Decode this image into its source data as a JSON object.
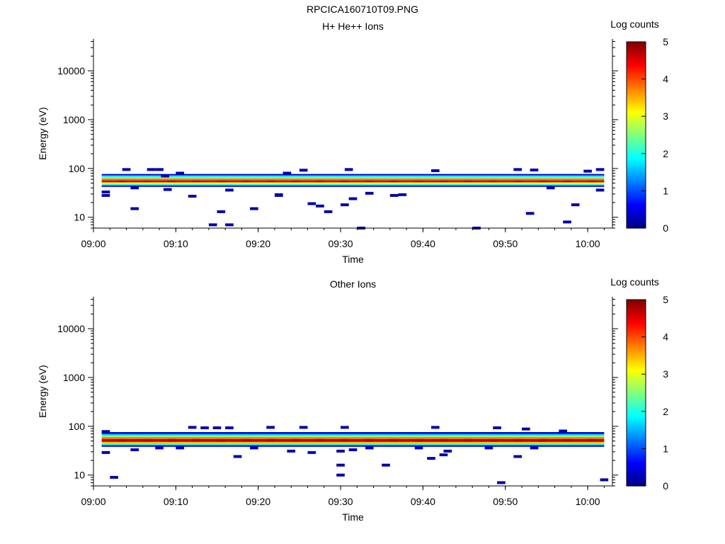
{
  "title": "RPCICA160710T09.PNG",
  "chart_data": [
    {
      "type": "heatmap",
      "title": "H+ He++ Ions",
      "xlabel": "Time",
      "ylabel": "Energy (eV)",
      "x_ticks": [
        "09:00",
        "09:10",
        "09:20",
        "09:30",
        "09:40",
        "09:50",
        "10:00"
      ],
      "x_range": [
        "09:00",
        "10:03"
      ],
      "y_scale": "log",
      "y_ticks": [
        10,
        100,
        1000,
        10000
      ],
      "y_tick_labels": [
        "10",
        "100",
        "1000",
        "10000"
      ],
      "ylim": [
        6,
        45000
      ],
      "colorbar": {
        "label": "Log counts",
        "range": [
          0,
          5
        ],
        "ticks": [
          "0",
          "1",
          "2",
          "3",
          "4",
          "5"
        ]
      },
      "band": {
        "time_start": "09:01",
        "time_end": "10:02",
        "levels": [
          {
            "energy": [
              42,
              45
            ],
            "value": 0.6
          },
          {
            "energy": [
              45,
              48
            ],
            "value": 2.0
          },
          {
            "energy": [
              48,
              52
            ],
            "value": 3.2
          },
          {
            "energy": [
              52,
              57
            ],
            "value": 4.6
          },
          {
            "energy": [
              57,
              62
            ],
            "value": 3.8
          },
          {
            "energy": [
              62,
              67
            ],
            "value": 2.6
          },
          {
            "energy": [
              67,
              72
            ],
            "value": 1.8
          },
          {
            "energy": [
              72,
              77
            ],
            "value": 0.4
          }
        ]
      },
      "sparse_points": [
        {
          "t": 1.0,
          "e": 28
        },
        {
          "t": 1.0,
          "e": 33
        },
        {
          "t": 3.5,
          "e": 95
        },
        {
          "t": 4.5,
          "e": 15
        },
        {
          "t": 4.5,
          "e": 40
        },
        {
          "t": 6.5,
          "e": 95
        },
        {
          "t": 7.5,
          "e": 95
        },
        {
          "t": 8.2,
          "e": 70
        },
        {
          "t": 8.5,
          "e": 37
        },
        {
          "t": 10.0,
          "e": 80
        },
        {
          "t": 11.5,
          "e": 27
        },
        {
          "t": 14.0,
          "e": 7
        },
        {
          "t": 15.0,
          "e": 13
        },
        {
          "t": 16.0,
          "e": 7
        },
        {
          "t": 16.0,
          "e": 36
        },
        {
          "t": 19.0,
          "e": 15
        },
        {
          "t": 22.0,
          "e": 29
        },
        {
          "t": 22.0,
          "e": 28
        },
        {
          "t": 23.0,
          "e": 80
        },
        {
          "t": 25.0,
          "e": 92
        },
        {
          "t": 26.0,
          "e": 19
        },
        {
          "t": 27.0,
          "e": 17
        },
        {
          "t": 28.0,
          "e": 13
        },
        {
          "t": 30.0,
          "e": 18
        },
        {
          "t": 30.5,
          "e": 95
        },
        {
          "t": 31.0,
          "e": 24
        },
        {
          "t": 32.0,
          "e": 6
        },
        {
          "t": 33.0,
          "e": 31
        },
        {
          "t": 36.0,
          "e": 28
        },
        {
          "t": 37.0,
          "e": 29
        },
        {
          "t": 41.0,
          "e": 90
        },
        {
          "t": 46.0,
          "e": 6
        },
        {
          "t": 51.0,
          "e": 95
        },
        {
          "t": 52.5,
          "e": 12
        },
        {
          "t": 53.0,
          "e": 93
        },
        {
          "t": 55.0,
          "e": 40
        },
        {
          "t": 57.0,
          "e": 8
        },
        {
          "t": 58.0,
          "e": 18
        },
        {
          "t": 59.5,
          "e": 88
        },
        {
          "t": 61.0,
          "e": 36
        },
        {
          "t": 61.0,
          "e": 95
        }
      ]
    },
    {
      "type": "heatmap",
      "title": "Other Ions",
      "xlabel": "Time",
      "ylabel": "Energy (eV)",
      "x_ticks": [
        "09:00",
        "09:10",
        "09:20",
        "09:30",
        "09:40",
        "09:50",
        "10:00"
      ],
      "x_range": [
        "09:00",
        "10:03"
      ],
      "y_scale": "log",
      "y_ticks": [
        10,
        100,
        1000,
        10000
      ],
      "y_tick_labels": [
        "10",
        "100",
        "1000",
        "10000"
      ],
      "ylim": [
        6,
        45000
      ],
      "colorbar": {
        "label": "Log counts",
        "range": [
          0,
          5
        ],
        "ticks": [
          "0",
          "1",
          "2",
          "3",
          "4",
          "5"
        ]
      },
      "band": {
        "time_start": "09:01",
        "time_end": "10:02",
        "levels": [
          {
            "energy": [
              38,
              41
            ],
            "value": 0.6
          },
          {
            "energy": [
              41,
              44
            ],
            "value": 2.0
          },
          {
            "energy": [
              44,
              48
            ],
            "value": 3.4
          },
          {
            "energy": [
              48,
              55
            ],
            "value": 4.7
          },
          {
            "energy": [
              55,
              60
            ],
            "value": 3.8
          },
          {
            "energy": [
              60,
              65
            ],
            "value": 2.6
          },
          {
            "energy": [
              65,
              70
            ],
            "value": 1.6
          },
          {
            "energy": [
              70,
              76
            ],
            "value": 0.4
          }
        ]
      },
      "sparse_points": [
        {
          "t": 1.0,
          "e": 78
        },
        {
          "t": 1.0,
          "e": 29
        },
        {
          "t": 2.0,
          "e": 9
        },
        {
          "t": 4.5,
          "e": 33
        },
        {
          "t": 7.5,
          "e": 36
        },
        {
          "t": 10.0,
          "e": 36
        },
        {
          "t": 11.5,
          "e": 95
        },
        {
          "t": 13.0,
          "e": 93
        },
        {
          "t": 14.5,
          "e": 93
        },
        {
          "t": 16.0,
          "e": 93
        },
        {
          "t": 17.0,
          "e": 24
        },
        {
          "t": 19.0,
          "e": 36
        },
        {
          "t": 21.0,
          "e": 95
        },
        {
          "t": 23.5,
          "e": 31
        },
        {
          "t": 25.0,
          "e": 95
        },
        {
          "t": 26.0,
          "e": 29
        },
        {
          "t": 29.5,
          "e": 31
        },
        {
          "t": 29.5,
          "e": 16
        },
        {
          "t": 29.5,
          "e": 10
        },
        {
          "t": 30.0,
          "e": 95
        },
        {
          "t": 31.0,
          "e": 33
        },
        {
          "t": 33.0,
          "e": 36
        },
        {
          "t": 35.0,
          "e": 16
        },
        {
          "t": 39.0,
          "e": 36
        },
        {
          "t": 40.5,
          "e": 22
        },
        {
          "t": 41.0,
          "e": 95
        },
        {
          "t": 42.0,
          "e": 26
        },
        {
          "t": 42.5,
          "e": 31
        },
        {
          "t": 47.5,
          "e": 36
        },
        {
          "t": 48.5,
          "e": 93
        },
        {
          "t": 49.0,
          "e": 7
        },
        {
          "t": 51.0,
          "e": 24
        },
        {
          "t": 52.0,
          "e": 88
        },
        {
          "t": 53.0,
          "e": 36
        },
        {
          "t": 56.5,
          "e": 80
        },
        {
          "t": 61.5,
          "e": 8
        }
      ]
    }
  ]
}
